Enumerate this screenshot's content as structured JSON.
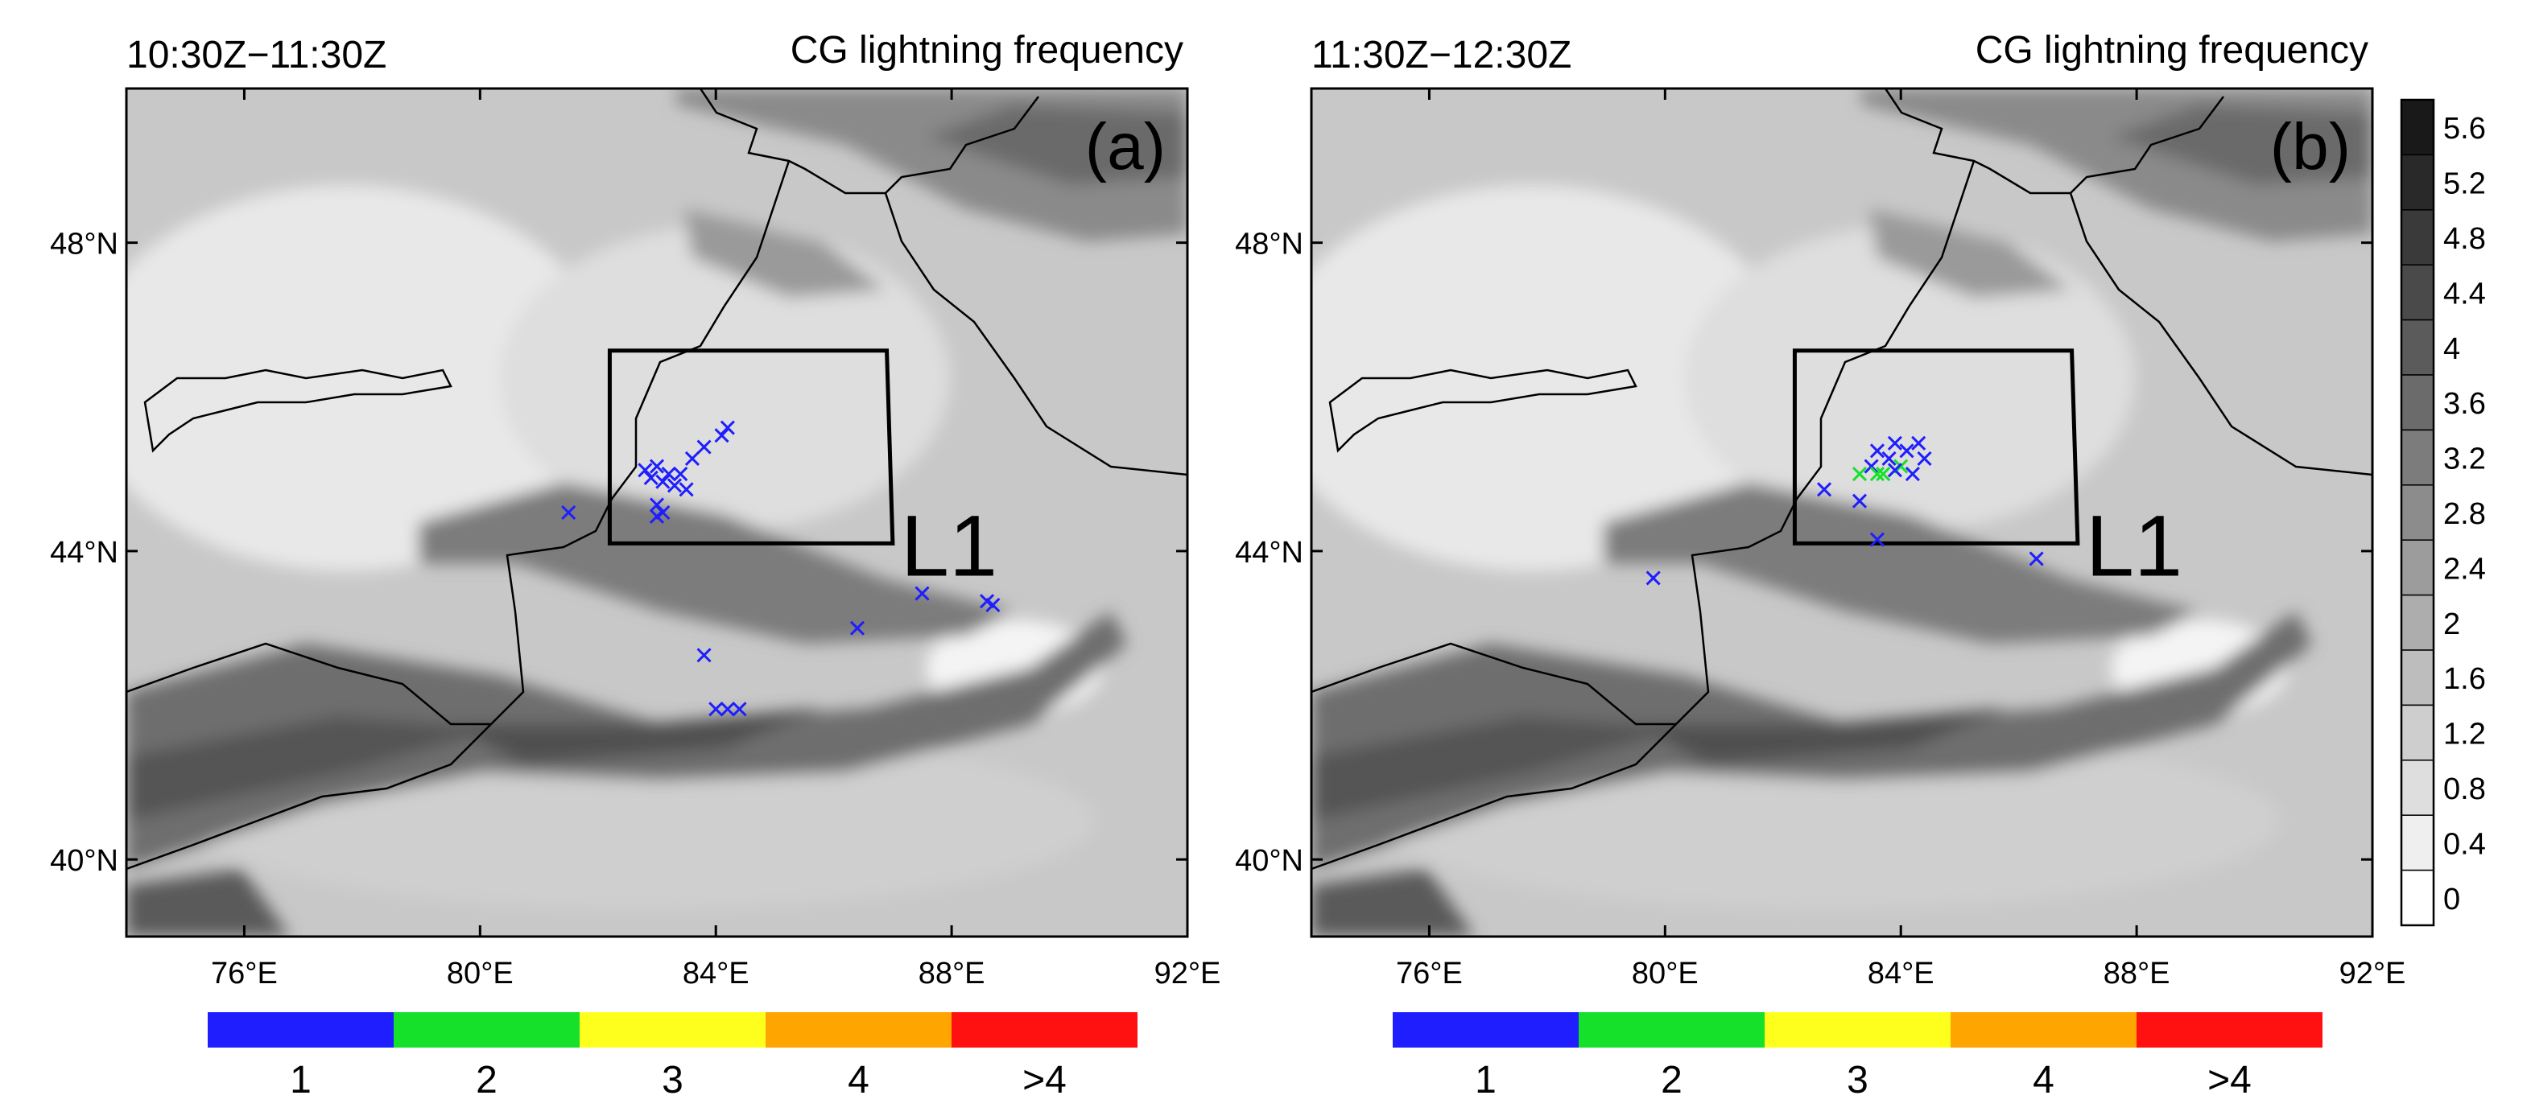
{
  "panels": [
    {
      "id": "a",
      "time_label": "10:30Z−11:30Z",
      "field_label": "CG lightning frequency",
      "panel_letter": "(a)",
      "box_label": "L1",
      "lat_ticks": [
        "48°N",
        "44°N",
        "40°N"
      ],
      "lon_ticks": [
        "76°E",
        "80°E",
        "84°E",
        "88°E",
        "92°E"
      ],
      "box_corners": [
        [
          82.2,
          46.6
        ],
        [
          86.9,
          46.6
        ],
        [
          87.0,
          44.1
        ],
        [
          82.2,
          44.1
        ]
      ],
      "strikes": [
        {
          "lon": 81.5,
          "lat": 44.5,
          "n": 1
        },
        {
          "lon": 82.8,
          "lat": 45.05,
          "n": 1
        },
        {
          "lon": 82.9,
          "lat": 44.95,
          "n": 1
        },
        {
          "lon": 83.0,
          "lat": 45.1,
          "n": 1
        },
        {
          "lon": 83.1,
          "lat": 44.9,
          "n": 1
        },
        {
          "lon": 83.2,
          "lat": 45.0,
          "n": 1
        },
        {
          "lon": 83.3,
          "lat": 44.85,
          "n": 1
        },
        {
          "lon": 83.4,
          "lat": 45.0,
          "n": 1
        },
        {
          "lon": 83.5,
          "lat": 44.8,
          "n": 1
        },
        {
          "lon": 83.6,
          "lat": 45.2,
          "n": 1
        },
        {
          "lon": 83.8,
          "lat": 45.35,
          "n": 1
        },
        {
          "lon": 84.1,
          "lat": 45.5,
          "n": 1
        },
        {
          "lon": 84.2,
          "lat": 45.6,
          "n": 1
        },
        {
          "lon": 83.0,
          "lat": 44.45,
          "n": 1
        },
        {
          "lon": 83.1,
          "lat": 44.5,
          "n": 1
        },
        {
          "lon": 83.0,
          "lat": 44.6,
          "n": 1
        },
        {
          "lon": 86.4,
          "lat": 43.0,
          "n": 1
        },
        {
          "lon": 87.5,
          "lat": 43.45,
          "n": 1
        },
        {
          "lon": 88.6,
          "lat": 43.35,
          "n": 1
        },
        {
          "lon": 88.7,
          "lat": 43.3,
          "n": 1
        },
        {
          "lon": 83.8,
          "lat": 42.65,
          "n": 1
        },
        {
          "lon": 84.0,
          "lat": 41.95,
          "n": 1
        },
        {
          "lon": 84.2,
          "lat": 41.95,
          "n": 1
        },
        {
          "lon": 84.4,
          "lat": 41.95,
          "n": 1
        }
      ]
    },
    {
      "id": "b",
      "time_label": "11:30Z−12:30Z",
      "field_label": "CG lightning frequency",
      "panel_letter": "(b)",
      "box_label": "L1",
      "lat_ticks": [
        "48°N",
        "44°N",
        "40°N"
      ],
      "lon_ticks": [
        "76°E",
        "80°E",
        "84°E",
        "88°E",
        "92°E"
      ],
      "box_corners": [
        [
          82.2,
          46.6
        ],
        [
          86.9,
          46.6
        ],
        [
          87.0,
          44.1
        ],
        [
          82.2,
          44.1
        ]
      ],
      "strikes": [
        {
          "lon": 82.7,
          "lat": 44.8,
          "n": 1
        },
        {
          "lon": 83.3,
          "lat": 45.0,
          "n": 2
        },
        {
          "lon": 83.5,
          "lat": 45.1,
          "n": 1
        },
        {
          "lon": 83.6,
          "lat": 45.3,
          "n": 1
        },
        {
          "lon": 83.7,
          "lat": 45.0,
          "n": 2
        },
        {
          "lon": 83.8,
          "lat": 45.2,
          "n": 1
        },
        {
          "lon": 83.9,
          "lat": 45.4,
          "n": 1
        },
        {
          "lon": 84.0,
          "lat": 45.1,
          "n": 2
        },
        {
          "lon": 84.1,
          "lat": 45.3,
          "n": 1
        },
        {
          "lon": 84.2,
          "lat": 45.0,
          "n": 1
        },
        {
          "lon": 84.3,
          "lat": 45.4,
          "n": 1
        },
        {
          "lon": 84.4,
          "lat": 45.2,
          "n": 1
        },
        {
          "lon": 83.6,
          "lat": 45.0,
          "n": 2
        },
        {
          "lon": 83.9,
          "lat": 45.05,
          "n": 1
        },
        {
          "lon": 83.3,
          "lat": 44.65,
          "n": 1
        },
        {
          "lon": 83.6,
          "lat": 44.15,
          "n": 1
        },
        {
          "lon": 79.8,
          "lat": 43.65,
          "n": 1
        },
        {
          "lon": 86.3,
          "lat": 43.9,
          "n": 1
        }
      ]
    }
  ],
  "terrain_colorbar": {
    "labels": [
      "5.6",
      "5.2",
      "4.8",
      "4.4",
      "4",
      "3.6",
      "3.2",
      "2.8",
      "2.4",
      "2",
      "1.6",
      "1.2",
      "0.8",
      "0.4",
      "0"
    ]
  },
  "frequency_colorbar": {
    "labels": [
      "1",
      "2",
      "3",
      "4",
      ">4"
    ],
    "colors": [
      "#1e1eff",
      "#15e02a",
      "#ffff1e",
      "#ffa500",
      "#ff1111"
    ]
  },
  "map_extent": {
    "lon_min": 74.0,
    "lon_max": 92.0,
    "lat_min": 39.0,
    "lat_max": 50.0
  },
  "map_colors": {
    "ocean_bg": "#d0d0d0",
    "box_line": "#000000",
    "border_line": "#000000"
  }
}
